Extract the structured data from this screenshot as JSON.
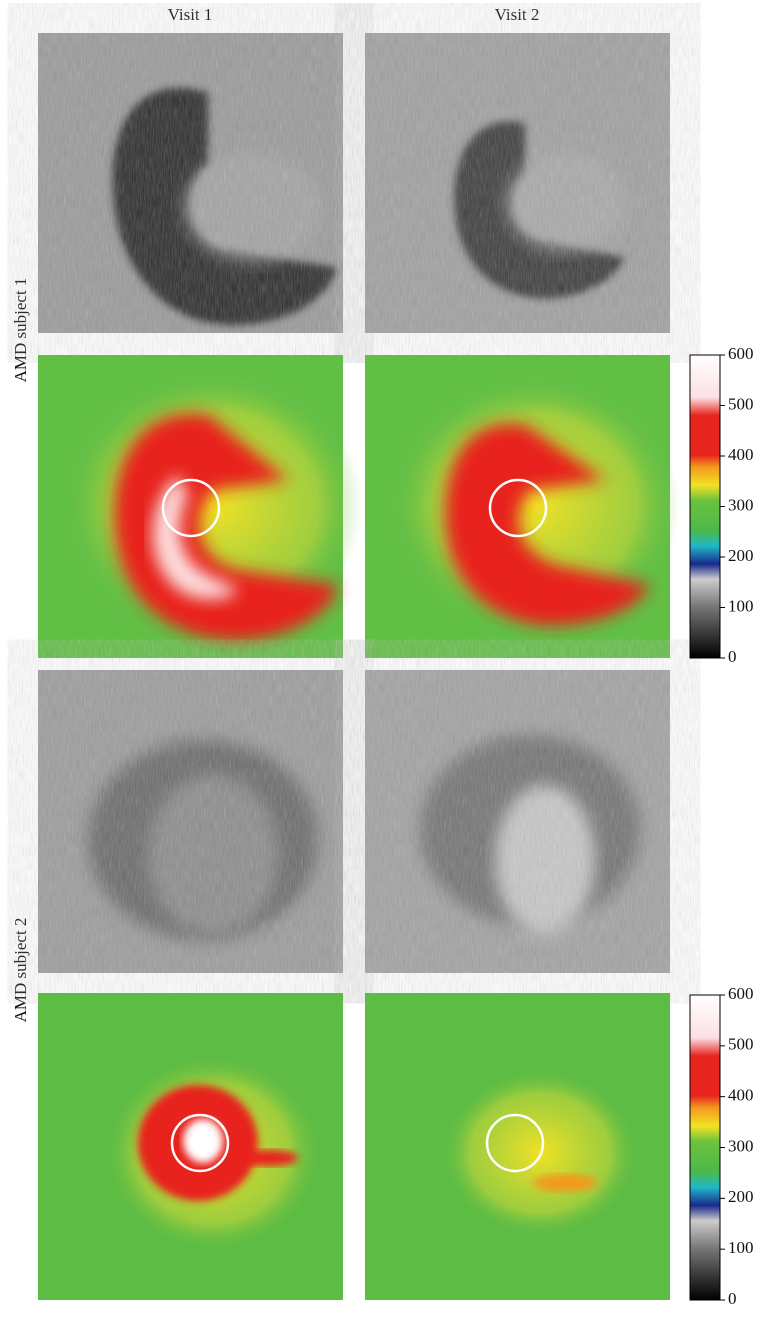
{
  "columns": [
    "Visit 1",
    "Visit 2"
  ],
  "rows": [
    {
      "label": "AMD subject 1"
    },
    {
      "label": "AMD subject 2"
    }
  ],
  "colorbar": {
    "lim": [
      0,
      600
    ],
    "ticks": [
      0,
      100,
      200,
      300,
      400,
      500,
      600
    ]
  }
}
